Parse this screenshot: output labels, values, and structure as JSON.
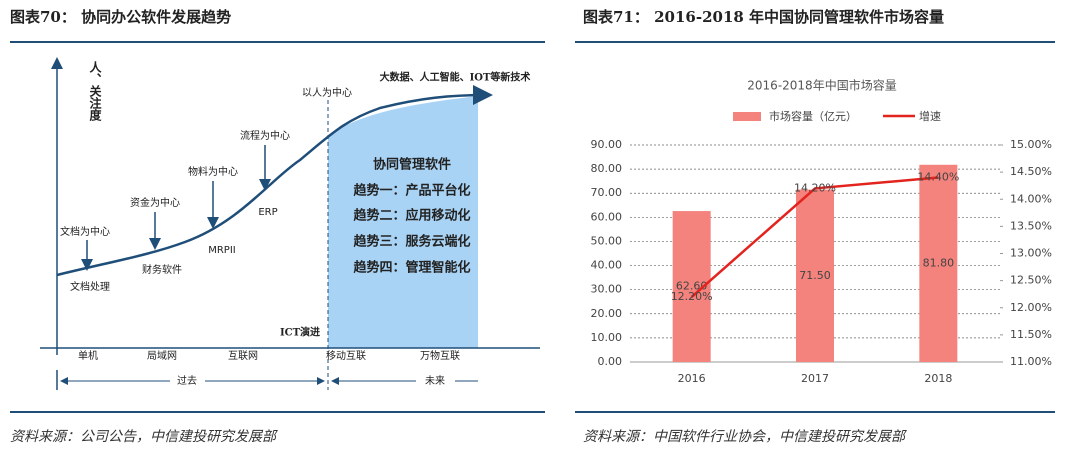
{
  "left_figure": {
    "title": "图表70： 协同办公软件发展趋势",
    "source": "资料来源：公司公告，中信建投研究发展部",
    "y_axis_label": "人、关注度",
    "top_note": "大数据、人工智能、IOT等新技术",
    "centers": [
      "文档为中心",
      "资金为中心",
      "物料为中心",
      "流程为中心",
      "以人为中心"
    ],
    "software": [
      "文档处理",
      "财务软件",
      "MRPII",
      "ERP"
    ],
    "box_title": "协同管理软件",
    "trends": [
      "趋势一：产品平台化",
      "趋势二：应用移动化",
      "趋势三：服务云端化",
      "趋势四：管理智能化"
    ],
    "divider_label": "ICT演进",
    "stages": [
      "单机",
      "局域网",
      "互联网",
      "移动互联",
      "万物互联"
    ],
    "eras": [
      "过去",
      "未来"
    ]
  },
  "right_figure": {
    "title": "图表71： 2016-2018 年中国协同管理软件市场容量",
    "source": "资料来源：中国软件行业协会，中信建投研究发展部"
  },
  "chart_data": {
    "type": "bar_line",
    "title": "2016-2018年中国市场容量",
    "categories": [
      "2016",
      "2017",
      "2018"
    ],
    "series": [
      {
        "name": "市场容量（亿元）",
        "type": "bar",
        "color": "#f4837d",
        "values": [
          62.6,
          71.5,
          81.8
        ],
        "value_labels": [
          "62.60",
          "71.50",
          "81.80"
        ]
      },
      {
        "name": "增速",
        "type": "line",
        "axis": "y2",
        "color": "#e3231e",
        "values": [
          12.2,
          14.2,
          14.4
        ],
        "value_labels": [
          "12.20%",
          "14.20%",
          "14.40%"
        ]
      }
    ],
    "ylim": [
      0,
      90
    ],
    "yticks": [
      {
        "value": 0,
        "label": "0.00"
      },
      {
        "value": 10,
        "label": "10.00"
      },
      {
        "value": 20,
        "label": "20.00"
      },
      {
        "value": 30,
        "label": "30.00"
      },
      {
        "value": 40,
        "label": "40.00"
      },
      {
        "value": 50,
        "label": "50.00"
      },
      {
        "value": 60,
        "label": "60.00"
      },
      {
        "value": 70,
        "label": "70.00"
      },
      {
        "value": 80,
        "label": "80.00"
      },
      {
        "value": 90,
        "label": "90.00"
      }
    ],
    "y2lim": [
      11,
      15
    ],
    "y2ticks": [
      {
        "value": 11,
        "label": "11.00%"
      },
      {
        "value": 11.5,
        "label": "11.50%"
      },
      {
        "value": 12,
        "label": "12.00%"
      },
      {
        "value": 12.5,
        "label": "12.50%"
      },
      {
        "value": 13,
        "label": "13.00%"
      },
      {
        "value": 13.5,
        "label": "13.50%"
      },
      {
        "value": 14,
        "label": "14.00%"
      },
      {
        "value": 14.5,
        "label": "14.50%"
      },
      {
        "value": 15,
        "label": "15.00%"
      }
    ],
    "grid": true
  }
}
